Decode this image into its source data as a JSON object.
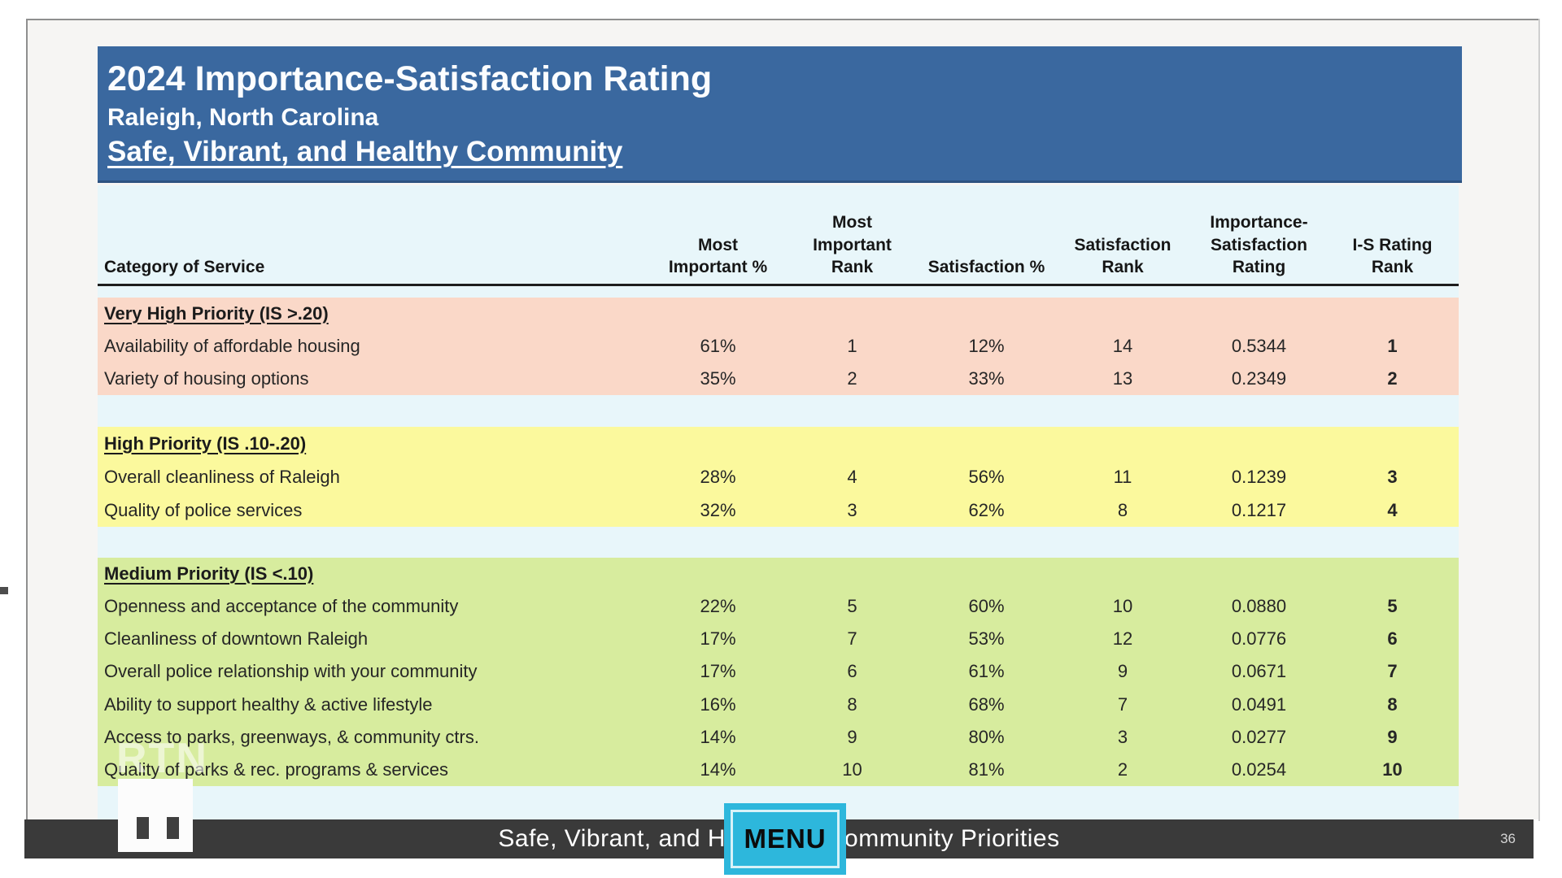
{
  "title": {
    "line1": "2024 Importance-Satisfaction Rating",
    "line2": "Raleigh, North Carolina",
    "line3": "Safe, Vibrant, and Healthy Community"
  },
  "table": {
    "columns": [
      "Category of Service",
      "Most Important %",
      "Most Important Rank",
      "Satisfaction %",
      "Satisfaction Rank",
      "Importance-Satisfaction Rating",
      "I-S Rating Rank"
    ],
    "header_lines": [
      [
        "Category of Service"
      ],
      [
        "Most",
        "Important %"
      ],
      [
        "Most",
        "Important",
        "Rank"
      ],
      [
        "Satisfaction %"
      ],
      [
        "Satisfaction",
        "Rank"
      ],
      [
        "Importance-",
        "Satisfaction",
        "Rating"
      ],
      [
        "I-S Rating",
        "Rank"
      ]
    ],
    "sections": [
      {
        "key": "very-high",
        "label": "Very High Priority (IS >.20)",
        "color": "#fad8c8",
        "rows": [
          [
            "Availability of affordable housing",
            "61%",
            "1",
            "12%",
            "14",
            "0.5344",
            "1"
          ],
          [
            "Variety of housing options",
            "35%",
            "2",
            "33%",
            "13",
            "0.2349",
            "2"
          ]
        ]
      },
      {
        "key": "high",
        "label": "High Priority (IS .10-.20)",
        "color": "#fbf99d",
        "rows": [
          [
            "Overall cleanliness of Raleigh",
            "28%",
            "4",
            "56%",
            "11",
            "0.1239",
            "3"
          ],
          [
            "Quality of police services",
            "32%",
            "3",
            "62%",
            "8",
            "0.1217",
            "4"
          ]
        ]
      },
      {
        "key": "medium",
        "label": "Medium Priority (IS <.10)",
        "color": "#d7ec9e",
        "rows": [
          [
            "Openness and acceptance of the community",
            "22%",
            "5",
            "60%",
            "10",
            "0.0880",
            "5"
          ],
          [
            "Cleanliness of downtown Raleigh",
            "17%",
            "7",
            "53%",
            "12",
            "0.0776",
            "6"
          ],
          [
            "Overall police relationship with your community",
            "17%",
            "6",
            "61%",
            "9",
            "0.0671",
            "7"
          ],
          [
            "Ability to support healthy & active lifestyle",
            "16%",
            "8",
            "68%",
            "7",
            "0.0491",
            "8"
          ],
          [
            "Access to parks, greenways, & community ctrs.",
            "14%",
            "9",
            "80%",
            "3",
            "0.0277",
            "9"
          ],
          [
            "Quality of parks & rec. programs & services",
            "14%",
            "10",
            "81%",
            "2",
            "0.0254",
            "10"
          ]
        ]
      }
    ]
  },
  "watermark": {
    "network": "RTN",
    "channel": "11"
  },
  "footer": {
    "caption_left": "Safe, Vibrant, and H",
    "caption_right": "ommunity Priorities",
    "menu_label": "MENU",
    "page_number": "36"
  },
  "colors": {
    "title_bg": "#3a689f",
    "very_high_bg": "#fad8c8",
    "high_bg": "#fbf99d",
    "medium_bg": "#d7ec9e",
    "table_bg": "#e8f6fa",
    "footer_bg": "#3a3a3a",
    "menu_accent": "#2db7dc"
  }
}
